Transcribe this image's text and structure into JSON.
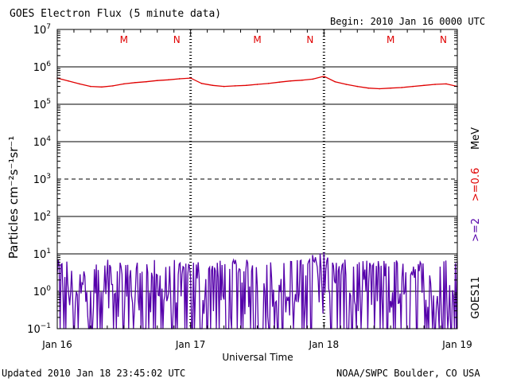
{
  "header": {
    "title": "GOES Electron Flux (5 minute data)",
    "begin": "Begin: 2010 Jan 16 0000 UTC"
  },
  "footer": {
    "updated": "Updated 2010 Jan 18 23:45:02 UTC",
    "credit": "NOAA/SWPC Boulder, CO USA"
  },
  "right_labels": {
    "unit": "MeV",
    "low_channel": ">=0.6",
    "high_channel": ">=2",
    "satellite": "GOES11"
  },
  "colors": {
    "low_channel": "#e00000",
    "high_channel": "#5500aa",
    "axis": "#000000"
  },
  "chart_data": {
    "type": "line",
    "title": "GOES Electron Flux (5 minute data)",
    "xlabel": "Universal Time",
    "ylabel": "Particles cm⁻²s⁻¹sr⁻¹",
    "yscale": "log",
    "ylim": [
      0.1,
      10000000
    ],
    "yticks": [
      {
        "base": "10",
        "exp": "7"
      },
      {
        "base": "10",
        "exp": "6"
      },
      {
        "base": "10",
        "exp": "5"
      },
      {
        "base": "10",
        "exp": "4"
      },
      {
        "base": "10",
        "exp": "3"
      },
      {
        "base": "10",
        "exp": "2"
      },
      {
        "base": "10",
        "exp": "1"
      },
      {
        "base": "10",
        "exp": "0"
      },
      {
        "base": "10",
        "exp": "−1"
      }
    ],
    "xticks": [
      "Jan 16",
      "Jan 17",
      "Jan 18",
      "Jan 19"
    ],
    "xlim": [
      0,
      72
    ],
    "day_markers": [
      {
        "noon": "M",
        "midnight": "N"
      },
      {
        "noon": "M",
        "midnight": "N"
      },
      {
        "noon": "M",
        "midnight": "N"
      }
    ],
    "series": [
      {
        "name": ">=0.6",
        "x": [
          0,
          2,
          4,
          6,
          8,
          10,
          12,
          14,
          16,
          18,
          20,
          22,
          24,
          26,
          28,
          30,
          32,
          34,
          36,
          38,
          40,
          42,
          44,
          46,
          48,
          50,
          52,
          54,
          56,
          58,
          60,
          62,
          64,
          66,
          68,
          70,
          72
        ],
        "values": [
          500000,
          420000,
          350000,
          300000,
          290000,
          310000,
          350000,
          380000,
          400000,
          430000,
          450000,
          480000,
          500000,
          360000,
          320000,
          300000,
          310000,
          320000,
          340000,
          360000,
          390000,
          420000,
          440000,
          470000,
          560000,
          400000,
          340000,
          300000,
          270000,
          260000,
          270000,
          280000,
          300000,
          320000,
          340000,
          350000,
          300000
        ]
      },
      {
        "name": ">=2",
        "x_range": [
          0,
          72
        ],
        "min": 0.1,
        "max": 12
      }
    ]
  }
}
